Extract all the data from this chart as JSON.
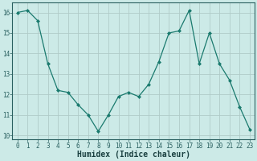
{
  "x": [
    0,
    1,
    2,
    3,
    4,
    5,
    6,
    7,
    8,
    9,
    10,
    11,
    12,
    13,
    14,
    15,
    16,
    17,
    18,
    19,
    20,
    21,
    22,
    23
  ],
  "y": [
    16.0,
    16.1,
    15.6,
    13.5,
    12.2,
    12.1,
    11.5,
    11.0,
    10.2,
    11.0,
    11.9,
    12.1,
    11.9,
    12.5,
    13.6,
    15.0,
    15.1,
    16.1,
    13.5,
    15.0,
    13.5,
    12.7,
    11.4,
    10.3
  ],
  "xlabel": "Humidex (Indice chaleur)",
  "line_color": "#1a7a6e",
  "marker_color": "#1a7a6e",
  "bg_color": "#cceae7",
  "grid_color": "#b0cbc8",
  "ylim": [
    9.8,
    16.5
  ],
  "xlim": [
    -0.5,
    23.5
  ],
  "yticks": [
    10,
    11,
    12,
    13,
    14,
    15,
    16
  ],
  "xticks": [
    0,
    1,
    2,
    3,
    4,
    5,
    6,
    7,
    8,
    9,
    10,
    11,
    12,
    13,
    14,
    15,
    16,
    17,
    18,
    19,
    20,
    21,
    22,
    23
  ],
  "tick_fontsize": 5.5,
  "xlabel_fontsize": 7.0,
  "tick_color": "#2a6060",
  "xlabel_color": "#1a4040"
}
